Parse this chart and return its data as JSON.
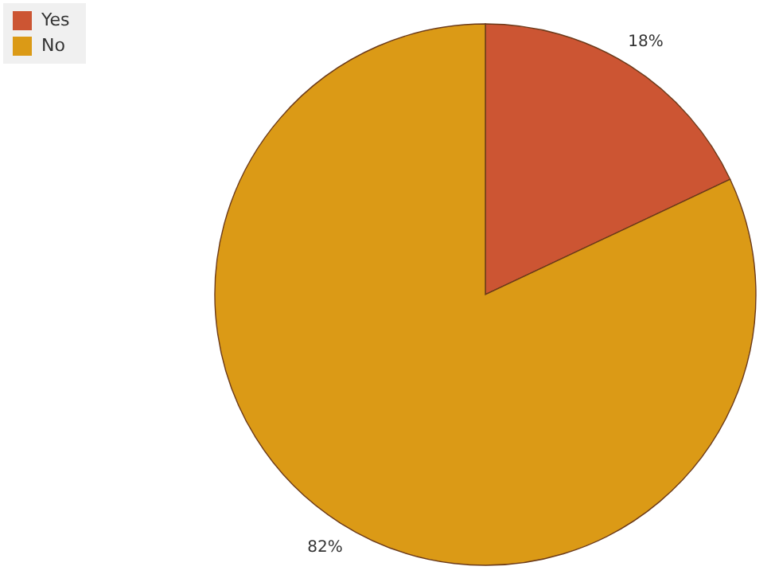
{
  "chart_data": {
    "type": "pie",
    "categories": [
      "Yes",
      "No"
    ],
    "values": [
      18,
      82
    ],
    "colors": [
      "#cc5533",
      "#db9a16"
    ],
    "value_labels": [
      "18%",
      "82%"
    ],
    "legend": "top left"
  }
}
